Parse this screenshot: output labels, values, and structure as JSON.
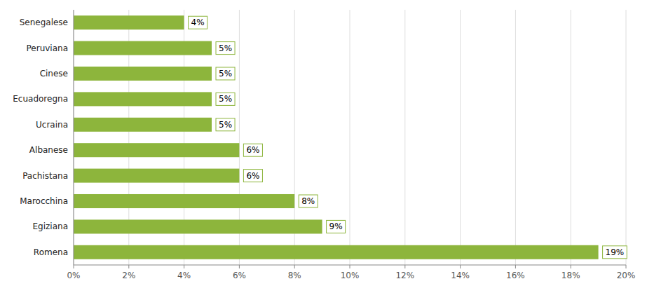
{
  "chart_data": {
    "type": "bar",
    "orientation": "horizontal",
    "categories": [
      "Romena",
      "Egiziana",
      "Marocchina",
      "Pachistana",
      "Albanese",
      "Ucraina",
      "Ecuadoregna",
      "Cinese",
      "Peruviana",
      "Senegalese"
    ],
    "values": [
      19,
      9,
      8,
      6,
      6,
      5,
      5,
      5,
      5,
      4
    ],
    "value_labels": [
      "19%",
      "9%",
      "8%",
      "6%",
      "6%",
      "5%",
      "5%",
      "5%",
      "5%",
      "4%"
    ],
    "color": "#8db53c",
    "xlim": [
      0,
      20
    ],
    "xticks": [
      {
        "value": 0,
        "label": "0%"
      },
      {
        "value": 2,
        "label": "2%"
      },
      {
        "value": 4,
        "label": "4%"
      },
      {
        "value": 6,
        "label": "6%"
      },
      {
        "value": 8,
        "label": "8%"
      },
      {
        "value": 10,
        "label": "10%"
      },
      {
        "value": 12,
        "label": "12%"
      },
      {
        "value": 14,
        "label": "14%"
      },
      {
        "value": 16,
        "label": "16%"
      },
      {
        "value": 18,
        "label": "18%"
      },
      {
        "value": 20,
        "label": "20%"
      }
    ],
    "grid": true,
    "data_labels": true
  }
}
